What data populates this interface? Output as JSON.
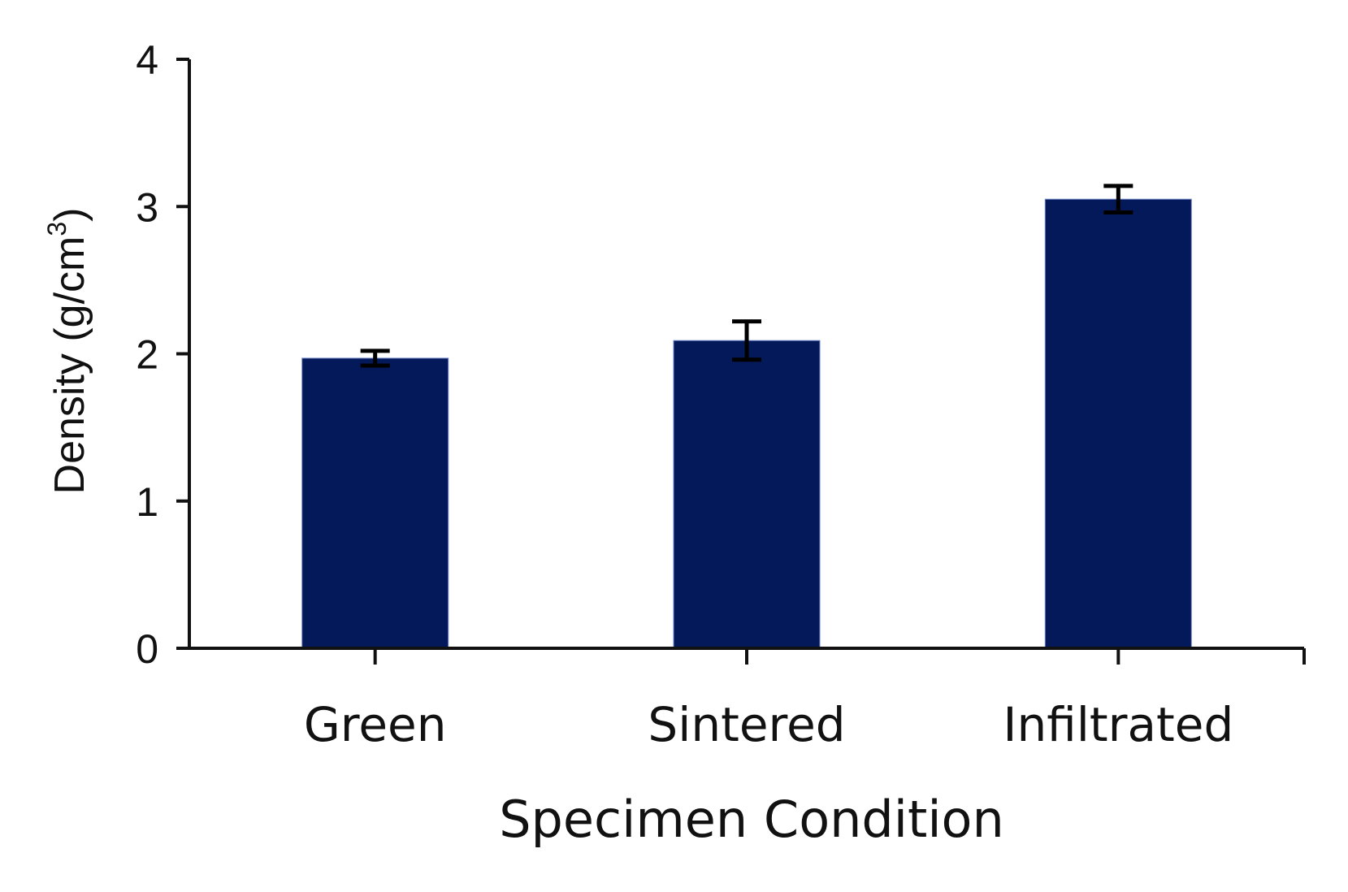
{
  "chart_data": {
    "type": "bar",
    "categories": [
      "Green",
      "Sintered",
      "Infiltrated"
    ],
    "values": [
      1.97,
      2.09,
      3.05
    ],
    "error": [
      0.05,
      0.13,
      0.09
    ],
    "xlabel": "Specimen Condition",
    "ylabel": {
      "main": "Density (g/cm",
      "superscript": "3",
      "close": ")"
    },
    "ylim": [
      0,
      4
    ],
    "yticks": [
      "0",
      "1",
      "2",
      "3",
      "4"
    ],
    "bar_color": "#03195a",
    "axis_color": "#111111",
    "grid": false,
    "legend": "none"
  }
}
